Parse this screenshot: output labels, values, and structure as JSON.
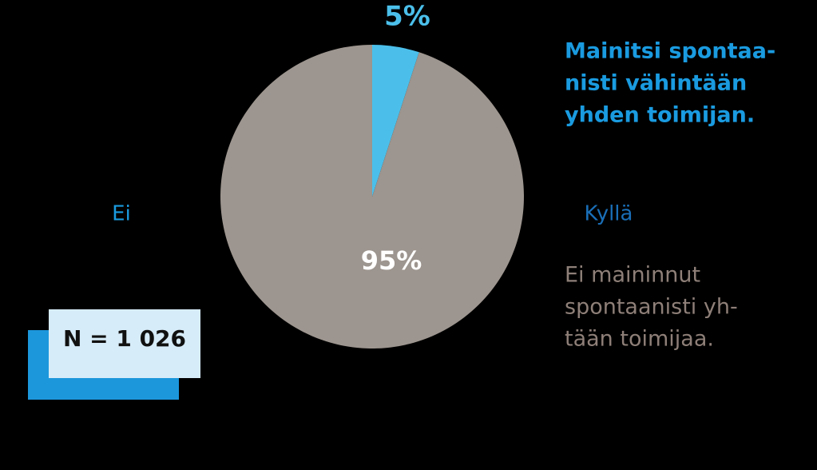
{
  "chart_data": {
    "type": "pie",
    "categories": [
      "Kyllä",
      "Ei"
    ],
    "values": [
      5,
      95
    ],
    "value_labels": [
      "5%",
      "95%"
    ],
    "colors": [
      "#4bbfea",
      "#9d958f"
    ],
    "descriptions": [
      [
        "Mainitsi spontaa-",
        "nisti vähintään",
        "yhden toimijan."
      ],
      [
        "Ei maininnut",
        "spontaanisti yh-",
        "tään toimijaa."
      ]
    ],
    "note": "N = 1 026"
  }
}
